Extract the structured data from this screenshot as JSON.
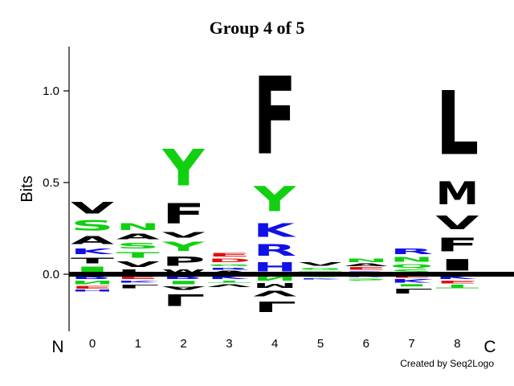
{
  "chart_data": {
    "type": "sequence-logo",
    "title": "Group 4 of 5",
    "ylabel": "Bits",
    "xlabel": "",
    "n_terminus_label": "N",
    "c_terminus_label": "C",
    "credit": "Created by Seq2Logo",
    "ylim": [
      -0.32,
      1.25
    ],
    "y_ticks": [
      0.0,
      0.5,
      1.0
    ],
    "y_tick_labels": [
      "0.0",
      "0.5",
      "1.0"
    ],
    "positions": [
      "0",
      "1",
      "2",
      "3",
      "4",
      "5",
      "6",
      "7",
      "8"
    ],
    "residue_colors": {
      "black": "#000000",
      "green": "#10d010",
      "blue": "#1010e8",
      "red": "#e01010"
    },
    "stacks": [
      {
        "pos": "0",
        "positive": [
          {
            "aa": "I",
            "bits": 0.05,
            "color": "green"
          },
          {
            "aa": "T",
            "bits": 0.05,
            "color": "black"
          },
          {
            "aa": "K",
            "bits": 0.05,
            "color": "blue"
          },
          {
            "aa": "A",
            "bits": 0.07,
            "color": "black"
          },
          {
            "aa": "S",
            "bits": 0.09,
            "color": "green"
          },
          {
            "aa": "V",
            "bits": 0.1,
            "color": "black"
          }
        ],
        "negative": [
          {
            "aa": "R",
            "bits": 0.03,
            "color": "blue"
          },
          {
            "aa": "N",
            "bits": 0.03,
            "color": "green"
          },
          {
            "aa": "E",
            "bits": 0.02,
            "color": "red"
          },
          {
            "aa": "H",
            "bits": 0.02,
            "color": "blue"
          }
        ]
      },
      {
        "pos": "1",
        "positive": [
          {
            "aa": "L",
            "bits": 0.03,
            "color": "black"
          },
          {
            "aa": "V",
            "bits": 0.05,
            "color": "black"
          },
          {
            "aa": "T",
            "bits": 0.05,
            "color": "green"
          },
          {
            "aa": "S",
            "bits": 0.05,
            "color": "green"
          },
          {
            "aa": "A",
            "bits": 0.05,
            "color": "black"
          },
          {
            "aa": "N",
            "bits": 0.06,
            "color": "green"
          }
        ],
        "negative": [
          {
            "aa": "E",
            "bits": 0.03,
            "color": "red"
          },
          {
            "aa": "K",
            "bits": 0.02,
            "color": "blue"
          },
          {
            "aa": "L",
            "bits": 0.03,
            "color": "black"
          }
        ]
      },
      {
        "pos": "2",
        "positive": [
          {
            "aa": "W",
            "bits": 0.03,
            "color": "black"
          },
          {
            "aa": "P",
            "bits": 0.08,
            "color": "black"
          },
          {
            "aa": "Y",
            "bits": 0.08,
            "color": "green"
          },
          {
            "aa": "V",
            "bits": 0.05,
            "color": "black"
          },
          {
            "aa": "F",
            "bits": 0.18,
            "color": "black"
          },
          {
            "aa": "Y",
            "bits": 0.32,
            "color": "green"
          }
        ],
        "negative": [
          {
            "aa": "R",
            "bits": 0.03,
            "color": "blue"
          },
          {
            "aa": "I",
            "bits": 0.03,
            "color": "green"
          },
          {
            "aa": "A",
            "bits": 0.03,
            "color": "black"
          },
          {
            "aa": "L",
            "bits": 0.1,
            "color": "black"
          }
        ]
      },
      {
        "pos": "3",
        "positive": [
          {
            "aa": "A",
            "bits": 0.02,
            "color": "black"
          },
          {
            "aa": "R",
            "bits": 0.02,
            "color": "blue"
          },
          {
            "aa": "G",
            "bits": 0.02,
            "color": "green"
          },
          {
            "aa": "D",
            "bits": 0.03,
            "color": "red"
          },
          {
            "aa": "E",
            "bits": 0.03,
            "color": "red"
          }
        ],
        "negative": [
          {
            "aa": "K",
            "bits": 0.03,
            "color": "blue"
          },
          {
            "aa": "T",
            "bits": 0.02,
            "color": "green"
          },
          {
            "aa": "V",
            "bits": 0.02,
            "color": "black"
          }
        ]
      },
      {
        "pos": "4",
        "positive": [
          {
            "aa": "H",
            "bits": 0.08,
            "color": "blue"
          },
          {
            "aa": "R",
            "bits": 0.1,
            "color": "blue"
          },
          {
            "aa": "K",
            "bits": 0.12,
            "color": "blue"
          },
          {
            "aa": "Y",
            "bits": 0.22,
            "color": "green"
          },
          {
            "aa": "F",
            "bits": 0.68,
            "color": "black"
          }
        ],
        "negative": [
          {
            "aa": "N",
            "bits": 0.04,
            "color": "green"
          },
          {
            "aa": "M",
            "bits": 0.04,
            "color": "black"
          },
          {
            "aa": "V",
            "bits": 0.05,
            "color": "black"
          },
          {
            "aa": "L",
            "bits": 0.09,
            "color": "black"
          }
        ]
      },
      {
        "pos": "5",
        "positive": [
          {
            "aa": "T",
            "bits": 0.02,
            "color": "green"
          },
          {
            "aa": "G",
            "bits": 0.02,
            "color": "green"
          },
          {
            "aa": "V",
            "bits": 0.03,
            "color": "black"
          }
        ],
        "negative": [
          {
            "aa": "S",
            "bits": 0.02,
            "color": "green"
          },
          {
            "aa": "K",
            "bits": 0.01,
            "color": "blue"
          }
        ]
      },
      {
        "pos": "6",
        "positive": [
          {
            "aa": "R",
            "bits": 0.02,
            "color": "blue"
          },
          {
            "aa": "E",
            "bits": 0.02,
            "color": "red"
          },
          {
            "aa": "A",
            "bits": 0.02,
            "color": "black"
          },
          {
            "aa": "N",
            "bits": 0.03,
            "color": "green"
          }
        ],
        "negative": [
          {
            "aa": "K",
            "bits": 0.02,
            "color": "blue"
          },
          {
            "aa": "S",
            "bits": 0.02,
            "color": "green"
          }
        ]
      },
      {
        "pos": "7",
        "positive": [
          {
            "aa": "S",
            "bits": 0.03,
            "color": "green"
          },
          {
            "aa": "Q",
            "bits": 0.03,
            "color": "green"
          },
          {
            "aa": "N",
            "bits": 0.04,
            "color": "green"
          },
          {
            "aa": "R",
            "bits": 0.05,
            "color": "blue"
          }
        ],
        "negative": [
          {
            "aa": "E",
            "bits": 0.02,
            "color": "red"
          },
          {
            "aa": "K",
            "bits": 0.03,
            "color": "blue"
          },
          {
            "aa": "I",
            "bits": 0.02,
            "color": "green"
          },
          {
            "aa": "L",
            "bits": 0.04,
            "color": "black"
          }
        ]
      },
      {
        "pos": "8",
        "positive": [
          {
            "aa": "I",
            "bits": 0.1,
            "color": "black"
          },
          {
            "aa": "F",
            "bits": 0.12,
            "color": "black"
          },
          {
            "aa": "V",
            "bits": 0.12,
            "color": "black"
          },
          {
            "aa": "M",
            "bits": 0.2,
            "color": "black"
          },
          {
            "aa": "L",
            "bits": 0.56,
            "color": "black"
          }
        ],
        "negative": [
          {
            "aa": "K",
            "bits": 0.03,
            "color": "blue"
          },
          {
            "aa": "E",
            "bits": 0.02,
            "color": "red"
          },
          {
            "aa": "T",
            "bits": 0.03,
            "color": "green"
          }
        ]
      }
    ]
  }
}
